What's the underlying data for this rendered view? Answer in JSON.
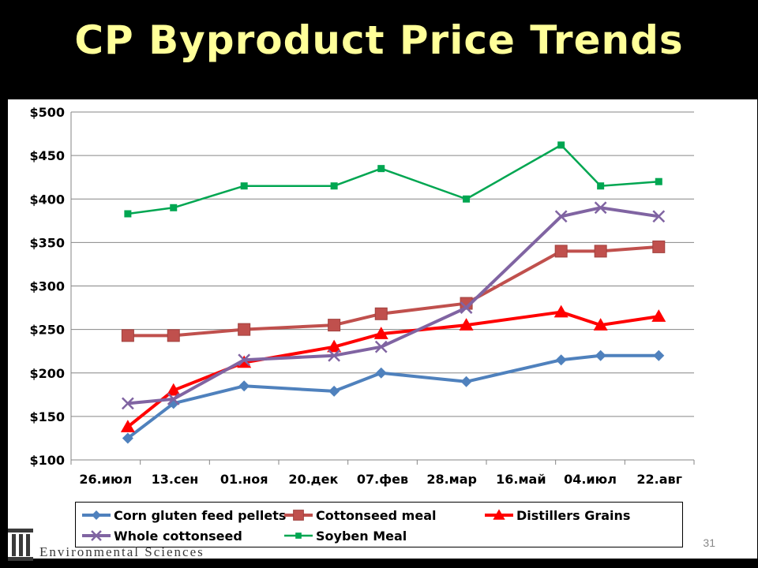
{
  "slide": {
    "title": "CP Byproduct Price Trends",
    "page_number": "31",
    "logo_text": "Environmental Sciences"
  },
  "chart_data": {
    "type": "line",
    "title": "",
    "xlabel": "",
    "ylabel": "",
    "x_tick_labels": [
      "26.июл",
      "13.сен",
      "01.ноя",
      "20.дек",
      "07.фев",
      "28.мар",
      "16.май",
      "04.июл",
      "22.авг"
    ],
    "x_tick_index": [
      0,
      1,
      2,
      3,
      4,
      5,
      6,
      7,
      8
    ],
    "y_tick_labels": [
      "$100",
      "$150",
      "$200",
      "$250",
      "$300",
      "$350",
      "$400",
      "$450",
      "$500"
    ],
    "ylim": [
      100,
      500
    ],
    "grid": "horizontal",
    "legend_position": "bottom",
    "series": [
      {
        "name": "Corn gluten feed pellets",
        "color": "#4f81bd",
        "marker": "diamond",
        "x": [
          0.32,
          0.98,
          2.0,
          3.3,
          3.98,
          5.21,
          6.58,
          7.15,
          7.99
        ],
        "values": [
          125,
          165,
          185,
          179,
          200,
          190,
          215,
          220,
          220
        ]
      },
      {
        "name": "Cottonseed meal",
        "color": "#c0504d",
        "marker": "square",
        "x": [
          0.32,
          0.98,
          2.0,
          3.3,
          3.98,
          5.21,
          6.58,
          7.15,
          7.99
        ],
        "values": [
          243,
          243,
          250,
          255,
          268,
          280,
          340,
          340,
          345
        ]
      },
      {
        "name": "Distillers Grains",
        "color": "#ff0000",
        "marker": "triangle",
        "x": [
          0.32,
          0.98,
          2.0,
          3.3,
          3.98,
          5.21,
          6.58,
          7.15,
          7.99
        ],
        "values": [
          138,
          180,
          212,
          230,
          245,
          255,
          270,
          255,
          265
        ]
      },
      {
        "name": "Whole cottonseed",
        "color": "#8064a2",
        "marker": "x",
        "x": [
          0.32,
          0.98,
          2.0,
          3.3,
          3.98,
          5.21,
          6.58,
          7.15,
          7.99
        ],
        "values": [
          165,
          170,
          215,
          220,
          230,
          275,
          380,
          390,
          380
        ]
      },
      {
        "name": "Soyben Meal",
        "color": "#00a651",
        "marker": "small-square",
        "x": [
          0.32,
          0.98,
          2.0,
          3.3,
          3.98,
          5.21,
          6.58,
          7.15,
          7.99
        ],
        "values": [
          383,
          390,
          415,
          415,
          435,
          400,
          462,
          415,
          420
        ]
      }
    ]
  }
}
